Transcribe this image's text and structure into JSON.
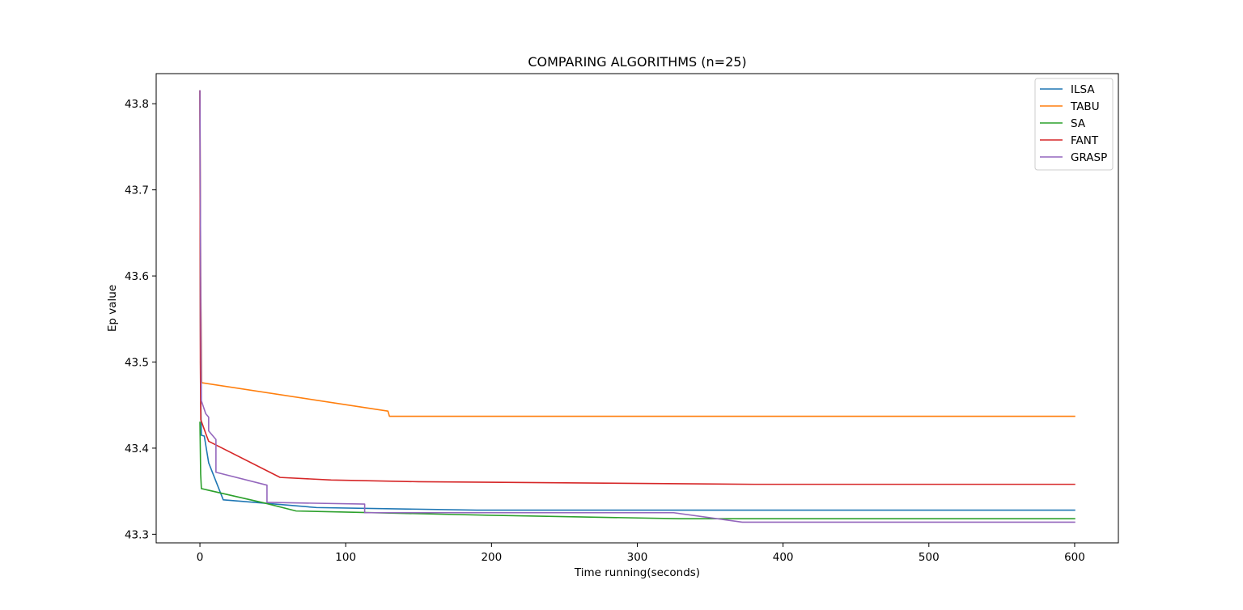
{
  "chart_data": {
    "type": "line",
    "title": "COMPARING ALGORITHMS (n=25)",
    "xlabel": "Time running(seconds)",
    "ylabel": "Ep value",
    "xlim": [
      -30,
      630
    ],
    "ylim": [
      43.29,
      43.835
    ],
    "xticks": [
      0,
      100,
      200,
      300,
      400,
      500,
      600
    ],
    "yticks": [
      43.3,
      43.4,
      43.5,
      43.6,
      43.7,
      43.8
    ],
    "ytick_labels": [
      "43.3",
      "43.4",
      "43.5",
      "43.6",
      "43.7",
      "43.8"
    ],
    "grid": false,
    "legend_position": "top-right",
    "series": [
      {
        "name": "ILSA",
        "color": "#1f77b4",
        "points": [
          [
            0,
            43.815
          ],
          [
            0.3,
            43.55
          ],
          [
            0.6,
            43.45
          ],
          [
            1,
            43.415
          ],
          [
            3,
            43.414
          ],
          [
            6,
            43.383
          ],
          [
            16,
            43.34
          ],
          [
            45,
            43.336
          ],
          [
            80,
            43.331
          ],
          [
            190,
            43.328
          ],
          [
            600,
            43.328
          ]
        ]
      },
      {
        "name": "TABU",
        "color": "#ff7f0e",
        "points": [
          [
            0,
            43.815
          ],
          [
            0.5,
            43.6
          ],
          [
            1,
            43.52
          ],
          [
            1.2,
            43.476
          ],
          [
            129,
            43.443
          ],
          [
            130,
            43.437
          ],
          [
            600,
            43.437
          ]
        ]
      },
      {
        "name": "SA",
        "color": "#2ca02c",
        "points": [
          [
            0,
            43.43
          ],
          [
            0.5,
            43.37
          ],
          [
            1,
            43.353
          ],
          [
            45,
            43.336
          ],
          [
            66,
            43.327
          ],
          [
            200,
            43.322
          ],
          [
            330,
            43.318
          ],
          [
            600,
            43.318
          ]
        ]
      },
      {
        "name": "FANT",
        "color": "#d62728",
        "points": [
          [
            0,
            43.815
          ],
          [
            0.3,
            43.5
          ],
          [
            0.6,
            43.433
          ],
          [
            4,
            43.417
          ],
          [
            6,
            43.408
          ],
          [
            55,
            43.366
          ],
          [
            90,
            43.363
          ],
          [
            150,
            43.361
          ],
          [
            380,
            43.358
          ],
          [
            600,
            43.358
          ]
        ]
      },
      {
        "name": "GRASP",
        "color": "#9467bd",
        "points": [
          [
            0,
            43.815
          ],
          [
            0.5,
            43.6
          ],
          [
            1,
            43.455
          ],
          [
            4,
            43.44
          ],
          [
            6,
            43.436
          ],
          [
            6,
            43.42
          ],
          [
            11,
            43.41
          ],
          [
            11,
            43.372
          ],
          [
            46,
            43.357
          ],
          [
            46,
            43.337
          ],
          [
            113,
            43.335
          ],
          [
            113,
            43.325
          ],
          [
            325,
            43.325
          ],
          [
            372,
            43.314
          ],
          [
            600,
            43.314
          ]
        ]
      }
    ]
  }
}
